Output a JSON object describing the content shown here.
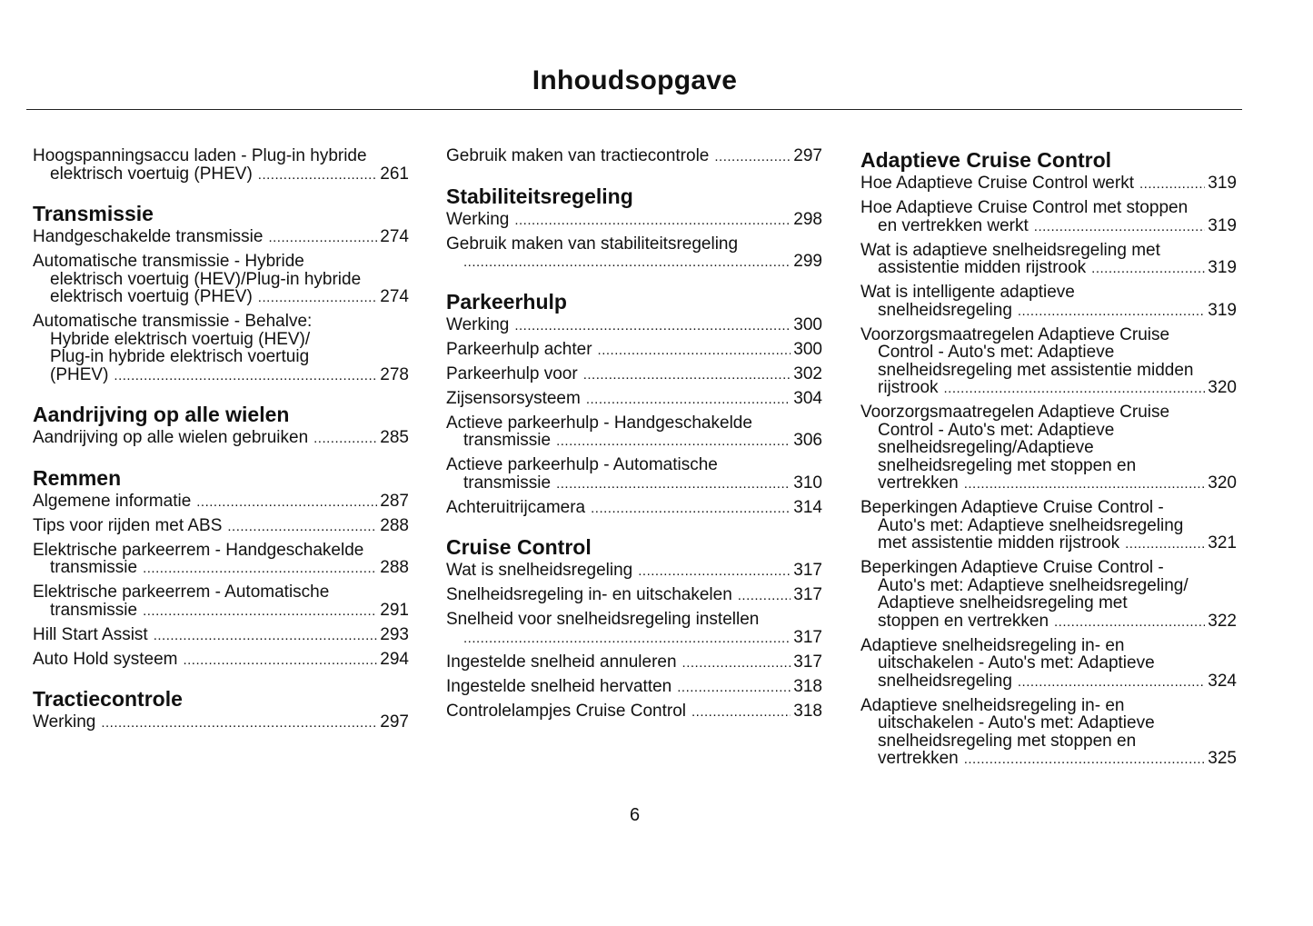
{
  "title": "Inhoudsopgave",
  "page_number": "6",
  "columns": [
    [
      {
        "entry": [
          "Hoogspanningsaccu laden - Plug-in hybride",
          "elektrisch voertuig (PHEV)"
        ],
        "page": "261"
      },
      {
        "heading": "Transmissie"
      },
      {
        "entry": [
          "Handgeschakelde transmissie"
        ],
        "page": "274"
      },
      {
        "entry": [
          "Automatische transmissie - Hybride",
          "elektrisch voertuig (HEV)/Plug-in hybride",
          "elektrisch voertuig (PHEV)"
        ],
        "page": "274"
      },
      {
        "entry": [
          "Automatische transmissie - Behalve:",
          "Hybride elektrisch voertuig (HEV)/",
          "Plug-in hybride elektrisch voertuig",
          "(PHEV)"
        ],
        "page": "278"
      },
      {
        "heading": "Aandrijving op alle wielen"
      },
      {
        "entry": [
          "Aandrijving op alle wielen gebruiken"
        ],
        "page": "285"
      },
      {
        "heading": "Remmen"
      },
      {
        "entry": [
          "Algemene informatie"
        ],
        "page": "287"
      },
      {
        "entry": [
          "Tips voor rijden met ABS"
        ],
        "page": "288"
      },
      {
        "entry": [
          "Elektrische parkeerrem - Handgeschakelde",
          "transmissie"
        ],
        "page": "288"
      },
      {
        "entry": [
          "Elektrische parkeerrem - Automatische",
          "transmissie"
        ],
        "page": "291"
      },
      {
        "entry": [
          "Hill Start Assist"
        ],
        "page": "293"
      },
      {
        "entry": [
          "Auto Hold systeem"
        ],
        "page": "294"
      },
      {
        "heading": "Tractiecontrole"
      },
      {
        "entry": [
          "Werking"
        ],
        "page": "297"
      }
    ],
    [
      {
        "entry": [
          "Gebruik maken van tractiecontrole"
        ],
        "page": "297"
      },
      {
        "heading": "Stabiliteitsregeling"
      },
      {
        "entry": [
          "Werking"
        ],
        "page": "298"
      },
      {
        "entry": [
          "Gebruik maken van stabiliteitsregeling",
          ""
        ],
        "page": "299"
      },
      {
        "heading": "Parkeerhulp"
      },
      {
        "entry": [
          "Werking"
        ],
        "page": "300"
      },
      {
        "entry": [
          "Parkeerhulp achter"
        ],
        "page": "300"
      },
      {
        "entry": [
          "Parkeerhulp voor"
        ],
        "page": "302"
      },
      {
        "entry": [
          "Zijsensorsysteem"
        ],
        "page": "304"
      },
      {
        "entry": [
          "Actieve parkeerhulp - Handgeschakelde",
          "transmissie"
        ],
        "page": "306"
      },
      {
        "entry": [
          "Actieve parkeerhulp - Automatische",
          "transmissie"
        ],
        "page": "310"
      },
      {
        "entry": [
          "Achteruitrijcamera"
        ],
        "page": "314"
      },
      {
        "heading": "Cruise Control"
      },
      {
        "entry": [
          "Wat is snelheidsregeling"
        ],
        "page": "317"
      },
      {
        "entry": [
          "Snelheidsregeling in- en uitschakelen"
        ],
        "page": "317"
      },
      {
        "entry": [
          "Snelheid voor snelheidsregeling instellen",
          ""
        ],
        "page": "317"
      },
      {
        "entry": [
          "Ingestelde snelheid annuleren"
        ],
        "page": "317"
      },
      {
        "entry": [
          "Ingestelde snelheid hervatten"
        ],
        "page": "318"
      },
      {
        "entry": [
          "Controlelampjes Cruise Control"
        ],
        "page": "318"
      }
    ],
    [
      {
        "heading": "Adaptieve Cruise Control"
      },
      {
        "entry": [
          "Hoe Adaptieve Cruise Control werkt"
        ],
        "page": "319"
      },
      {
        "entry": [
          "Hoe Adaptieve Cruise Control met stoppen",
          "en vertrekken werkt"
        ],
        "page": "319"
      },
      {
        "entry": [
          "Wat is adaptieve snelheidsregeling met",
          "assistentie midden rijstrook"
        ],
        "page": "319"
      },
      {
        "entry": [
          "Wat is intelligente adaptieve",
          "snelheidsregeling"
        ],
        "page": "319"
      },
      {
        "entry": [
          "Voorzorgsmaatregelen Adaptieve Cruise",
          "Control - Auto's met: Adaptieve",
          "snelheidsregeling met assistentie midden",
          "rijstrook"
        ],
        "page": "320"
      },
      {
        "entry": [
          "Voorzorgsmaatregelen Adaptieve Cruise",
          "Control - Auto's met: Adaptieve",
          "snelheidsregeling/Adaptieve",
          "snelheidsregeling met stoppen en",
          "vertrekken"
        ],
        "page": "320"
      },
      {
        "entry": [
          "Beperkingen Adaptieve Cruise Control -",
          "Auto's met: Adaptieve snelheidsregeling",
          "met assistentie midden rijstrook"
        ],
        "page": "321"
      },
      {
        "entry": [
          "Beperkingen Adaptieve Cruise Control -",
          "Auto's met: Adaptieve snelheidsregeling/",
          "Adaptieve snelheidsregeling met",
          "stoppen en vertrekken"
        ],
        "page": "322"
      },
      {
        "entry": [
          "Adaptieve snelheidsregeling in- en",
          "uitschakelen - Auto's met: Adaptieve",
          "snelheidsregeling"
        ],
        "page": "324"
      },
      {
        "entry": [
          "Adaptieve snelheidsregeling in- en",
          "uitschakelen - Auto's met: Adaptieve",
          "snelheidsregeling met stoppen en",
          "vertrekken"
        ],
        "page": "325"
      }
    ]
  ]
}
